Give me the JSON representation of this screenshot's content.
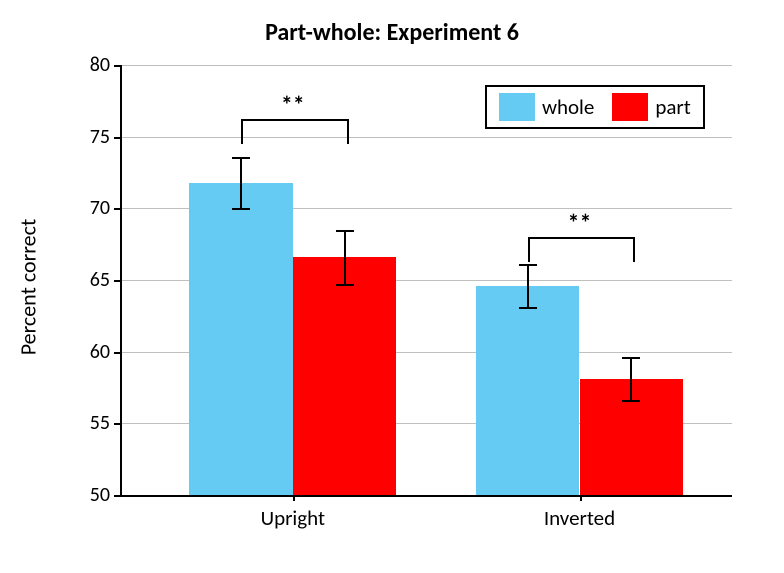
{
  "chart": {
    "type": "bar",
    "title": "Part-whole:  Experiment 6",
    "title_fontsize": 24,
    "title_fontweight": 700,
    "ylabel": "Percent correct",
    "y_label_fontsize": 22,
    "x_tick_fontsize": 21,
    "y_tick_fontsize": 20,
    "ylim": [
      50,
      80
    ],
    "ytick_step": 5,
    "yticks": [
      50,
      55,
      60,
      65,
      70,
      75,
      80
    ],
    "background_color": "#ffffff",
    "grid_color": "#bfbfbf",
    "grid_on": true,
    "axis_color": "#000000",
    "categories": [
      "Upright",
      "Inverted"
    ],
    "series": [
      {
        "name": "whole",
        "color": "#65cbf3"
      },
      {
        "name": "part",
        "color": "#ff0000"
      }
    ],
    "bar_group_width_ratio": 0.34,
    "bar_gap_within_group": 0,
    "group_centers_ratio": [
      0.28,
      0.75
    ],
    "data": {
      "Upright": {
        "whole": {
          "value": 71.8,
          "err": 1.8
        },
        "part": {
          "value": 66.6,
          "err": 1.9
        }
      },
      "Inverted": {
        "whole": {
          "value": 64.6,
          "err": 1.5
        },
        "part": {
          "value": 58.1,
          "err": 1.5
        }
      }
    },
    "errorbar_color": "#000000",
    "errorbar_cap_width": 18,
    "significance": [
      {
        "group": "Upright",
        "label": "**",
        "y": 76.2,
        "drop": 1.6
      },
      {
        "group": "Inverted",
        "label": "**",
        "y": 68.0,
        "drop": 1.6
      }
    ],
    "sig_fontsize": 24,
    "legend": {
      "x_ratio": 0.595,
      "y_value": 78.6,
      "fontsize": 21,
      "items": [
        {
          "label": "whole",
          "color": "#65cbf3"
        },
        {
          "label": "part",
          "color": "#ff0000"
        }
      ]
    }
  }
}
